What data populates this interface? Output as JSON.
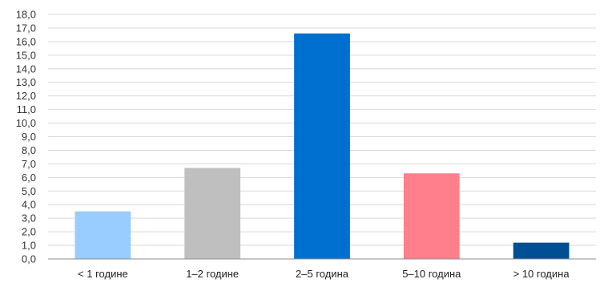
{
  "chart_data": {
    "type": "bar",
    "title": "",
    "xlabel": "",
    "ylabel": "",
    "ylim": [
      0,
      18
    ],
    "ytick_step": 1,
    "ytick_labels": [
      "0,0",
      "1,0",
      "2,0",
      "3,0",
      "4,0",
      "5,0",
      "6,0",
      "7,0",
      "8,0",
      "9,0",
      "10,0",
      "11,0",
      "12,0",
      "13,0",
      "14,0",
      "15,0",
      "16,0",
      "17,0",
      "18,0"
    ],
    "grid": true,
    "legend": "none",
    "categories": [
      "< 1 године",
      "1–2 године",
      "2–5 година",
      "5–10 година",
      "> 10 година"
    ],
    "values": [
      3.5,
      6.7,
      16.6,
      6.3,
      1.2
    ],
    "colors": [
      "#99CCFF",
      "#BFBFBF",
      "#0070D0",
      "#FF7F8C",
      "#004E94"
    ]
  }
}
